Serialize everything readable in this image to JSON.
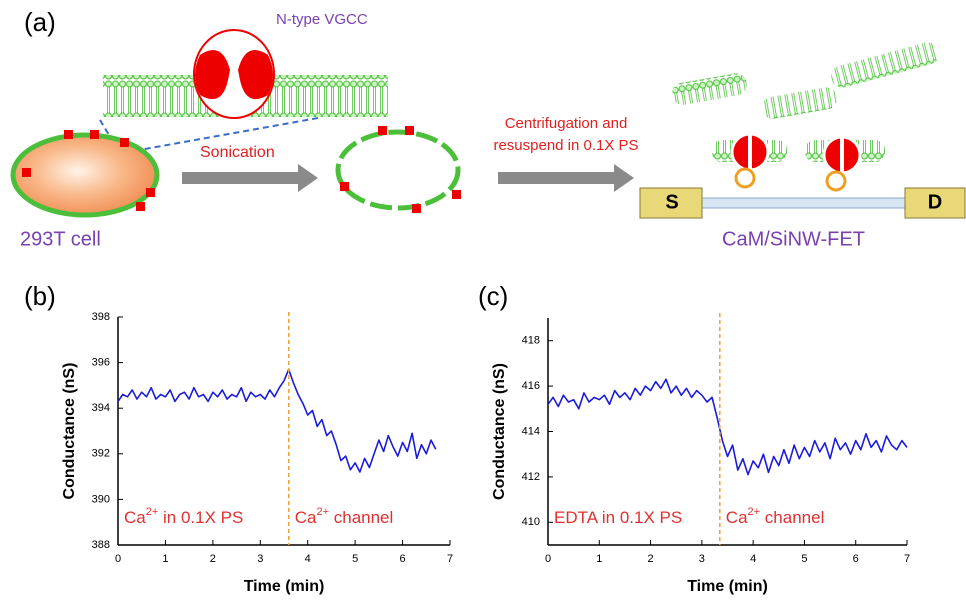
{
  "diagram": {
    "panel_label": "(a)",
    "channel_label": "N-type VGCC",
    "step1": "Sonication",
    "step2_line1": "Centrifugation and",
    "step2_line2": "resuspend in 0.1X PS",
    "cell_label": "293T cell",
    "device_label": "CaM/SiNW-FET",
    "source": "S",
    "drain": "D"
  },
  "chart_data": [
    {
      "type": "line",
      "panel_label": "(b)",
      "x_label": "Time (min)",
      "y_label": "Conductance (nS)",
      "xlim": [
        0,
        7
      ],
      "xticks": [
        0,
        1,
        2,
        3,
        4,
        5,
        6,
        7
      ],
      "ylim": [
        388,
        398
      ],
      "yticks": [
        388,
        390,
        392,
        394,
        396,
        398
      ],
      "marker_x": 3.6,
      "marker_color": "#f0a040",
      "annotations": [
        {
          "base": "Ca",
          "sup": "2+",
          "rest": " in 0.1X PS"
        },
        {
          "base": "Ca",
          "sup": "2+",
          "rest": " channel"
        }
      ],
      "x": [
        0,
        0.1,
        0.2,
        0.3,
        0.4,
        0.5,
        0.6,
        0.7,
        0.8,
        0.9,
        1,
        1.1,
        1.2,
        1.3,
        1.4,
        1.5,
        1.6,
        1.7,
        1.8,
        1.9,
        2,
        2.1,
        2.2,
        2.3,
        2.4,
        2.5,
        2.6,
        2.7,
        2.8,
        2.9,
        3,
        3.1,
        3.2,
        3.3,
        3.4,
        3.5,
        3.6,
        3.7,
        3.8,
        3.9,
        4,
        4.1,
        4.2,
        4.3,
        4.4,
        4.5,
        4.6,
        4.7,
        4.8,
        4.9,
        5,
        5.1,
        5.2,
        5.3,
        5.4,
        5.5,
        5.6,
        5.7,
        5.8,
        5.9,
        6,
        6.1,
        6.2,
        6.3,
        6.4,
        6.5,
        6.6,
        6.7
      ],
      "series": [
        {
          "color": "#1c1cd8",
          "values": [
            394.3,
            394.6,
            394.5,
            394.8,
            394.4,
            394.7,
            394.5,
            394.9,
            394.4,
            394.6,
            394.5,
            394.8,
            394.3,
            394.6,
            394.7,
            394.4,
            394.9,
            394.5,
            394.6,
            394.3,
            394.7,
            394.5,
            394.8,
            394.4,
            394.6,
            394.5,
            394.9,
            394.3,
            394.7,
            394.5,
            394.6,
            394.4,
            394.8,
            394.5,
            394.9,
            395.2,
            395.7,
            395.1,
            394.6,
            394.2,
            393.7,
            393.9,
            393.2,
            393.5,
            392.8,
            393.0,
            392.4,
            391.7,
            391.9,
            391.3,
            391.6,
            391.2,
            391.8,
            391.4,
            392.0,
            392.6,
            392.1,
            392.8,
            392.3,
            391.9,
            392.5,
            392.1,
            392.9,
            391.8,
            392.4,
            392.0,
            392.6,
            392.2
          ]
        }
      ]
    },
    {
      "type": "line",
      "panel_label": "(c)",
      "x_label": "Time (min)",
      "y_label": "Conductance (nS)",
      "xlim": [
        0,
        7
      ],
      "xticks": [
        0,
        1,
        2,
        3,
        4,
        5,
        6,
        7
      ],
      "ylim": [
        409,
        419
      ],
      "yticks": [
        410,
        412,
        414,
        416,
        418
      ],
      "marker_x": 3.35,
      "marker_color": "#f0a040",
      "annotations": [
        {
          "base": "EDTA  in 0.1X PS"
        },
        {
          "base": "Ca",
          "sup": "2+",
          "rest": " channel"
        }
      ],
      "x": [
        0,
        0.1,
        0.2,
        0.3,
        0.4,
        0.5,
        0.6,
        0.7,
        0.8,
        0.9,
        1,
        1.1,
        1.2,
        1.3,
        1.4,
        1.5,
        1.6,
        1.7,
        1.8,
        1.9,
        2,
        2.1,
        2.2,
        2.3,
        2.4,
        2.5,
        2.6,
        2.7,
        2.8,
        2.9,
        3,
        3.1,
        3.2,
        3.3,
        3.4,
        3.5,
        3.6,
        3.7,
        3.8,
        3.9,
        4,
        4.1,
        4.2,
        4.3,
        4.4,
        4.5,
        4.6,
        4.7,
        4.8,
        4.9,
        5,
        5.1,
        5.2,
        5.3,
        5.4,
        5.5,
        5.6,
        5.7,
        5.8,
        5.9,
        6,
        6.1,
        6.2,
        6.3,
        6.4,
        6.5,
        6.6,
        6.7,
        6.8,
        6.9,
        7
      ],
      "series": [
        {
          "color": "#1c1cd8",
          "values": [
            415.2,
            415.5,
            415.1,
            415.6,
            415.3,
            415.4,
            415.0,
            415.7,
            415.3,
            415.5,
            415.4,
            415.6,
            415.2,
            415.8,
            415.5,
            415.7,
            415.4,
            415.9,
            415.6,
            416.0,
            415.8,
            416.2,
            415.9,
            416.3,
            415.7,
            416.0,
            415.6,
            415.9,
            415.5,
            415.8,
            415.6,
            415.3,
            415.5,
            414.6,
            413.6,
            412.9,
            413.4,
            412.3,
            412.8,
            412.1,
            412.7,
            412.4,
            413.0,
            412.2,
            412.9,
            412.5,
            413.2,
            412.6,
            413.4,
            412.8,
            413.3,
            412.9,
            413.6,
            413.1,
            413.5,
            412.8,
            413.7,
            413.2,
            413.5,
            413.0,
            413.6,
            413.2,
            413.9,
            413.3,
            413.6,
            413.1,
            413.8,
            413.4,
            413.2,
            413.6,
            413.3
          ]
        }
      ]
    }
  ]
}
